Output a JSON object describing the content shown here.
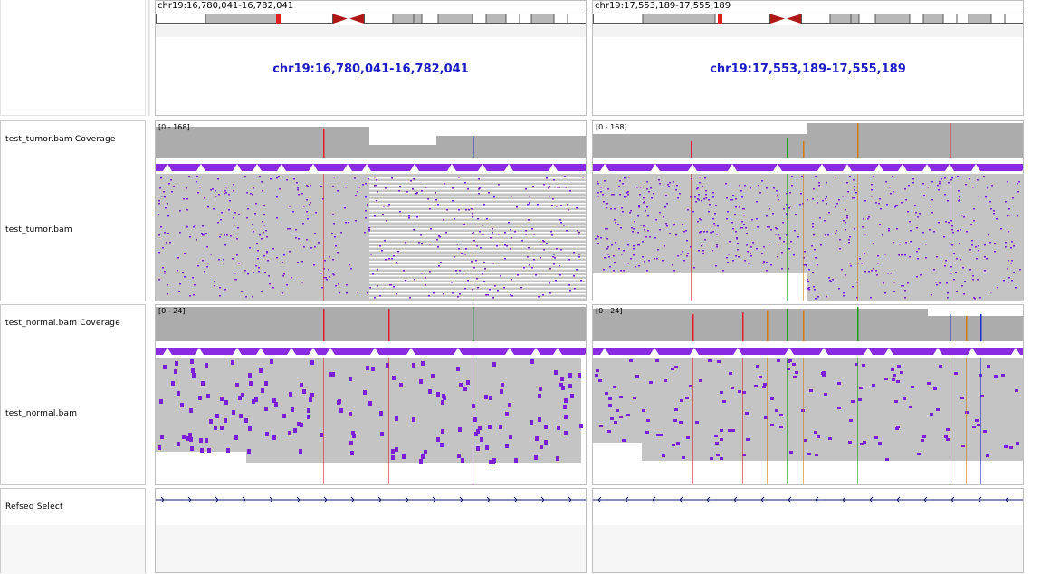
{
  "header": {
    "left_locus_label": "chr19:16,780,041-16,782,041",
    "right_locus_label": "chr19:17,553,189-17,555,189",
    "left_center_locus": "chr19:16,780,041-16,782,041",
    "right_center_locus": "chr19:17,553,189-17,555,189"
  },
  "tracks": {
    "tumor_coverage_name": "test_tumor.bam Coverage",
    "tumor_bam_name": "test_tumor.bam",
    "normal_coverage_name": "test_normal.bam Coverage",
    "normal_bam_name": "test_normal.bam",
    "refseq_name": "Refseq Select",
    "tumor_scale_left": "[0 - 168]",
    "tumor_scale_right": "[0 - 168]",
    "normal_scale_left": "[0 - 24]",
    "normal_scale_right": "[0 - 24]"
  },
  "colors": {
    "coverage_gray": "#acacac",
    "read_gray": "#c4c4c4",
    "mismatch_purple": "#7a1fd6",
    "insertion_bar": "#8a2be2",
    "allele_red": "#e0202a",
    "allele_blue": "#1a2fd0",
    "allele_green": "#18a018",
    "allele_orange": "#d07a10",
    "locus_blue": "#1b1bc8",
    "centromere_red": "#c81e1e",
    "gene_navy": "#1a1a7a"
  },
  "features": {
    "left_gene_strand": "+",
    "right_gene_strand": "-"
  }
}
